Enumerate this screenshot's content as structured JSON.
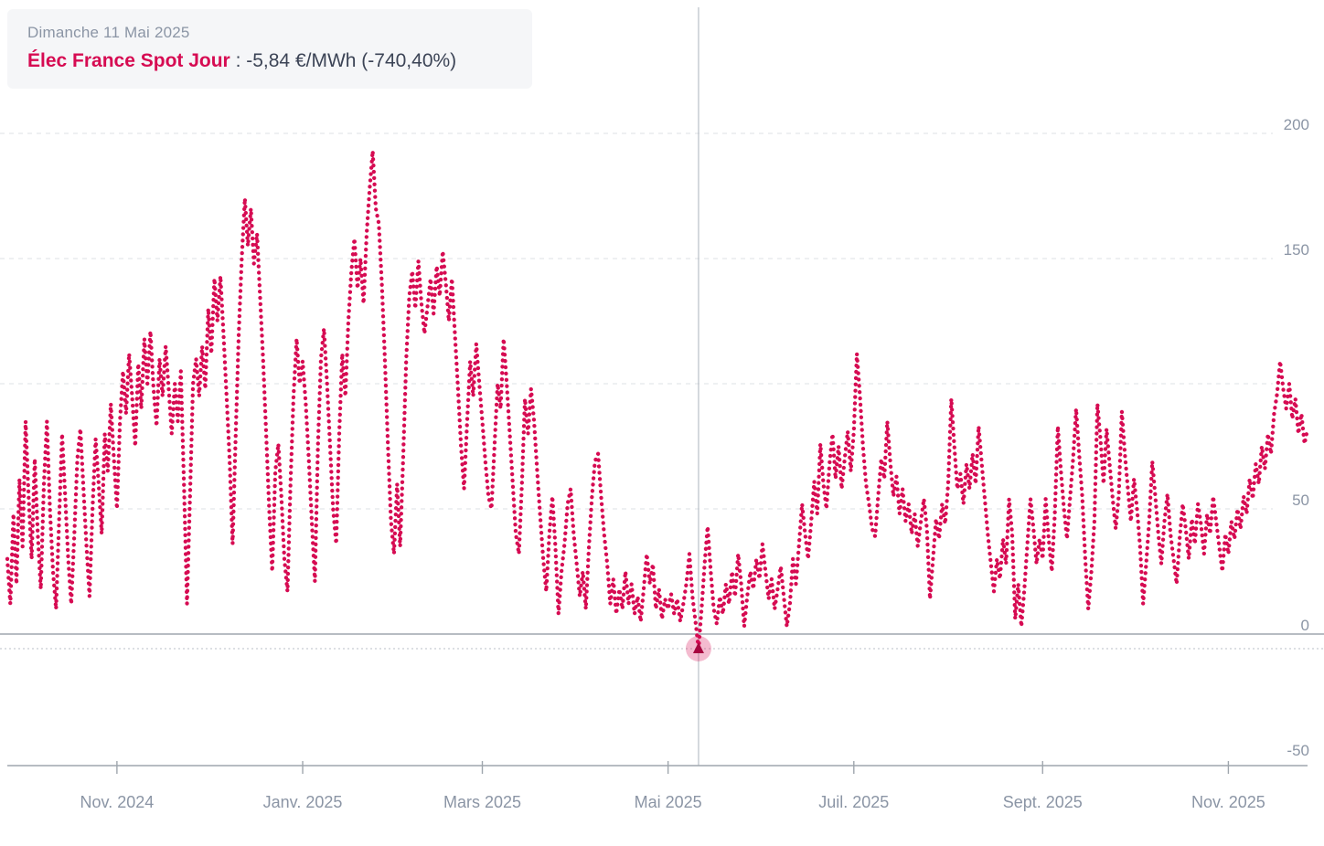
{
  "colors": {
    "accent": "#d60b52",
    "marker_halo": "#f3b8cd",
    "marker_triangle": "#a7063f",
    "grid": "#dde1e6",
    "axis_line": "#9fa6ad",
    "crosshair": "#b9bfc7",
    "axis_text": "#8b95a5",
    "tooltip_bg": "#f5f6f8"
  },
  "tooltip": {
    "date": "Dimanche 11 Mai 2025",
    "series_name": "Élec France Spot Jour",
    "value_text": " : -5,84 €/MWh (-740,40%)"
  },
  "chart_data": {
    "type": "line",
    "style": "dotted",
    "title": "Élec France Spot Jour",
    "ylabel": "€/MWh",
    "ylim": [
      -50,
      200
    ],
    "grid": "dashed-horizontal",
    "y_ticks": [
      {
        "label": "200",
        "value": 200
      },
      {
        "label": "150",
        "value": 150
      },
      {
        "label": "50",
        "value": 50
      },
      {
        "label": "0",
        "value": 0
      },
      {
        "label": "-50",
        "value": -50
      }
    ],
    "grid_values": [
      200,
      150,
      100,
      50
    ],
    "x_ticks": [
      {
        "label": "Nov. 2024",
        "day": 36
      },
      {
        "label": "Janv. 2025",
        "day": 97
      },
      {
        "label": "Mars 2025",
        "day": 156
      },
      {
        "label": "Mai 2025",
        "day": 217
      },
      {
        "label": "Juil. 2025",
        "day": 278
      },
      {
        "label": "Sept. 2025",
        "day": 340
      },
      {
        "label": "Nov. 2025",
        "day": 401
      }
    ],
    "selected_point": {
      "label": "Dimanche 11 Mai 2025",
      "day": 227,
      "value": -5.84,
      "unit": "€/MWh",
      "change_pct": "-740,40%"
    },
    "x_unit": "day index (daily spot prices, approx. Oct 2024 - Nov 2025)",
    "values": [
      30,
      12,
      48,
      20,
      62,
      35,
      85,
      55,
      30,
      70,
      40,
      18,
      60,
      85,
      50,
      25,
      10,
      45,
      80,
      55,
      30,
      12,
      40,
      70,
      82,
      58,
      35,
      15,
      50,
      78,
      60,
      40,
      80,
      65,
      92,
      70,
      50,
      85,
      105,
      88,
      112,
      95,
      75,
      108,
      90,
      118,
      100,
      121,
      98,
      83,
      110,
      95,
      115,
      98,
      80,
      100,
      85,
      105,
      60,
      12,
      55,
      100,
      110,
      95,
      115,
      98,
      130,
      112,
      142,
      125,
      143,
      120,
      95,
      70,
      36,
      80,
      120,
      150,
      174,
      155,
      170,
      148,
      160,
      135,
      110,
      80,
      50,
      25,
      65,
      76,
      55,
      30,
      17,
      60,
      95,
      118,
      100,
      109,
      92,
      70,
      45,
      21,
      75,
      110,
      122,
      100,
      75,
      50,
      36,
      80,
      112,
      95,
      125,
      145,
      158,
      138,
      150,
      132,
      160,
      178,
      193,
      170,
      164,
      140,
      110,
      75,
      45,
      32,
      60,
      35,
      70,
      110,
      135,
      145,
      130,
      149,
      132,
      120,
      131,
      142,
      128,
      147,
      135,
      153,
      140,
      125,
      142,
      120,
      98,
      75,
      58,
      85,
      109,
      95,
      116,
      100,
      85,
      69,
      55,
      50,
      75,
      100,
      90,
      118,
      100,
      80,
      60,
      40,
      32,
      60,
      94,
      80,
      98,
      85,
      65,
      47,
      30,
      17,
      40,
      55,
      35,
      8,
      25,
      36,
      52,
      58,
      40,
      28,
      15,
      25,
      10,
      35,
      55,
      69,
      72,
      55,
      40,
      28,
      12,
      22,
      8,
      18,
      10,
      25,
      12,
      20,
      8,
      15,
      5,
      18,
      32,
      20,
      28,
      10,
      18,
      6,
      14,
      10,
      16,
      8,
      14,
      5,
      12,
      20,
      32,
      15,
      5,
      -5.84,
      10,
      28,
      43,
      25,
      10,
      4,
      15,
      8,
      20,
      12,
      25,
      15,
      32,
      20,
      3,
      15,
      25,
      18,
      30,
      22,
      36,
      25,
      14,
      22,
      10,
      18,
      27,
      15,
      3,
      12,
      30,
      20,
      36,
      52,
      40,
      30,
      45,
      61,
      48,
      76,
      60,
      50,
      68,
      80,
      62,
      75,
      58,
      70,
      81,
      65,
      81,
      112,
      95,
      75,
      60,
      52,
      42,
      39,
      55,
      70,
      62,
      85,
      68,
      55,
      63,
      48,
      58,
      45,
      52,
      40,
      48,
      35,
      45,
      54,
      42,
      14,
      30,
      46,
      38,
      52,
      44,
      60,
      94,
      75,
      58,
      64,
      52,
      68,
      58,
      72,
      60,
      83,
      68,
      54,
      40,
      28,
      17,
      30,
      22,
      38,
      28,
      54,
      40,
      6,
      20,
      3,
      18,
      36,
      54,
      42,
      28,
      38,
      30,
      54,
      38,
      25,
      48,
      83,
      65,
      50,
      38,
      54,
      70,
      90,
      72,
      55,
      30,
      10,
      25,
      45,
      92,
      78,
      60,
      82,
      68,
      54,
      42,
      55,
      89,
      72,
      58,
      45,
      62,
      50,
      35,
      12,
      28,
      45,
      69,
      55,
      40,
      28,
      45,
      56,
      40,
      30,
      20,
      38,
      52,
      42,
      30,
      46,
      36,
      52,
      44,
      32,
      48,
      40,
      55,
      45,
      35,
      25,
      40,
      32,
      45,
      38,
      50,
      42,
      55,
      48,
      62,
      54,
      68,
      60,
      75,
      66,
      80,
      72,
      88,
      96,
      109,
      98,
      90,
      100,
      86,
      94,
      80,
      88,
      76,
      82
    ]
  }
}
